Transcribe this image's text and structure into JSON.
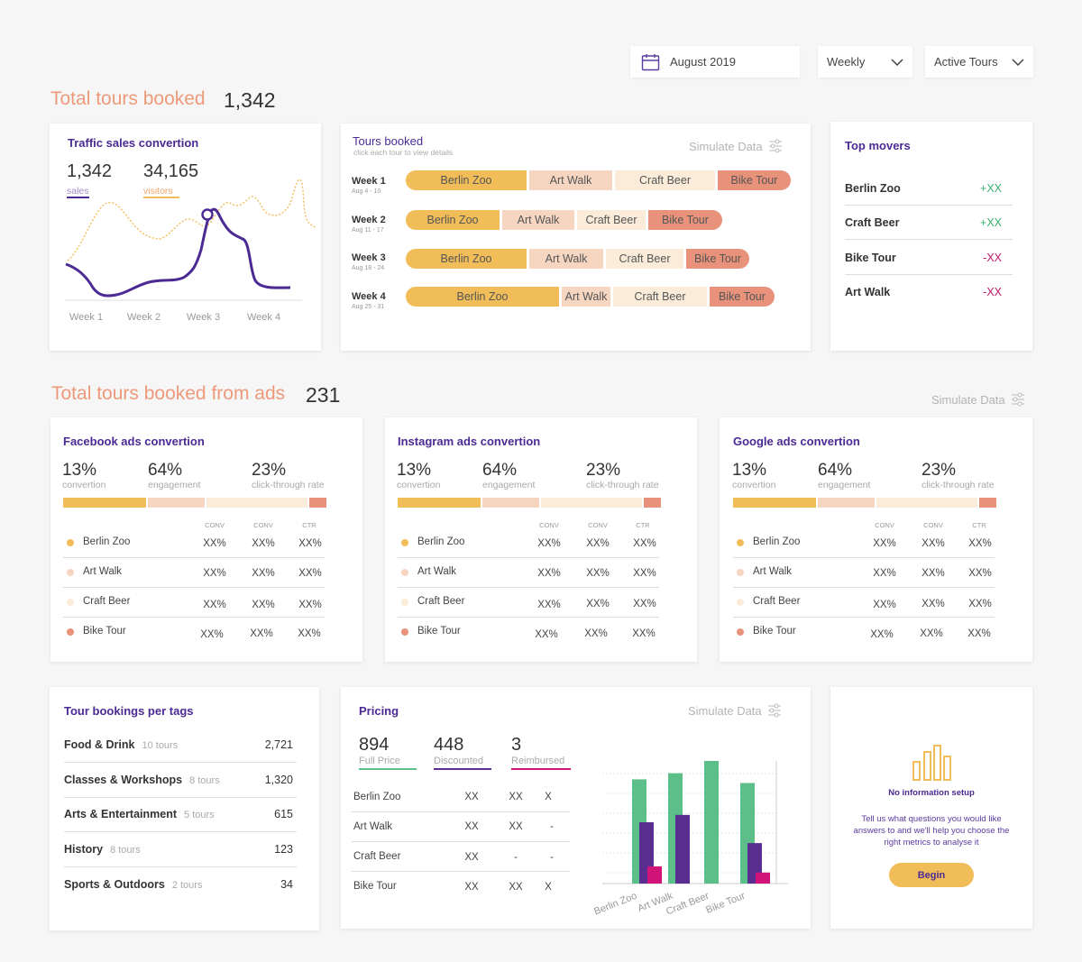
{
  "colors": {
    "accent": "#4b2a94",
    "orange": "#ee9a7a",
    "berlin_zoo": "#f1bd59",
    "art_walk": "#f6d6c1",
    "craft_beer": "#faecd9",
    "bike_tour": "#e8927b",
    "positive": "#3cb371",
    "negative": "#c0186f",
    "bar_green": "#5cbf8a",
    "bar_purple": "#5a2d91",
    "bar_pink": "#d0147a"
  },
  "controls": {
    "date": "August 2019",
    "period": "Weekly",
    "filter": "Active Tours"
  },
  "section1": {
    "title": "Total tours booked",
    "value": "1,342"
  },
  "traffic": {
    "title": "Traffic sales convertion",
    "sales_value": "1,342",
    "sales_label": "sales",
    "visitors_value": "34,165",
    "visitors_label": "visitors",
    "weeks": [
      "Week 1",
      "Week 2",
      "Week 3",
      "Week 4"
    ]
  },
  "tours": {
    "title": "Tours booked",
    "subtitle": "click each tour to view details",
    "simulate": "Simulate Data",
    "weeks": [
      {
        "label": "Week 1",
        "dates": "Aug 4 - 10",
        "segments": [
          "Berlin Zoo",
          "Art Walk",
          "Craft Beer",
          "Bike Tour"
        ]
      },
      {
        "label": "Week 2",
        "dates": "Aug 11 - 17",
        "segments": [
          "Berlin Zoo",
          "Art Walk",
          "Craft Beer",
          "Bike Tour"
        ]
      },
      {
        "label": "Week 3",
        "dates": "Aug 18 - 24",
        "segments": [
          "Berlin Zoo",
          "Art Walk",
          "Craft Beer",
          "Bike Tour"
        ]
      },
      {
        "label": "Week 4",
        "dates": "Aug 25 - 31",
        "segments": [
          "Berlin Zoo",
          "Art Walk",
          "Craft Beer",
          "Bike Tour"
        ]
      }
    ]
  },
  "movers": {
    "title": "Top movers",
    "items": [
      {
        "name": "Berlin Zoo",
        "change": "+XX"
      },
      {
        "name": "Craft Beer",
        "change": "+XX"
      },
      {
        "name": "Bike Tour",
        "change": "-XX"
      },
      {
        "name": "Art Walk",
        "change": "-XX"
      }
    ]
  },
  "section2": {
    "title": "Total tours booked from ads",
    "value": "231",
    "simulate": "Simulate Data"
  },
  "ads": [
    {
      "title": "Facebook ads convertion",
      "conv": "13%",
      "conv_label": "convertion",
      "eng": "64%",
      "eng_label": "engagement",
      "ctr": "23%",
      "ctr_label": "click-through rate",
      "cols": [
        "CONV",
        "CONV",
        "CTR"
      ],
      "rows": [
        {
          "name": "Berlin Zoo",
          "v": [
            "XX%",
            "XX%",
            "XX%"
          ]
        },
        {
          "name": "Art Walk",
          "v": [
            "XX%",
            "XX%",
            "XX%"
          ]
        },
        {
          "name": "Craft Beer",
          "v": [
            "XX%",
            "XX%",
            "XX%"
          ]
        },
        {
          "name": "Bike Tour",
          "v": [
            "XX%",
            "XX%",
            "XX%"
          ]
        }
      ]
    },
    {
      "title": "Instagram ads convertion",
      "conv": "13%",
      "conv_label": "convertion",
      "eng": "64%",
      "eng_label": "engagement",
      "ctr": "23%",
      "ctr_label": "click-through rate",
      "cols": [
        "CONV",
        "CONV",
        "CTR"
      ],
      "rows": [
        {
          "name": "Berlin Zoo",
          "v": [
            "XX%",
            "XX%",
            "XX%"
          ]
        },
        {
          "name": "Art Walk",
          "v": [
            "XX%",
            "XX%",
            "XX%"
          ]
        },
        {
          "name": "Craft Beer",
          "v": [
            "XX%",
            "XX%",
            "XX%"
          ]
        },
        {
          "name": "Bike Tour",
          "v": [
            "XX%",
            "XX%",
            "XX%"
          ]
        }
      ]
    },
    {
      "title": "Google ads convertion",
      "conv": "13%",
      "conv_label": "convertion",
      "eng": "64%",
      "eng_label": "engagement",
      "ctr": "23%",
      "ctr_label": "click-through rate",
      "cols": [
        "CONV",
        "CONV",
        "CTR"
      ],
      "rows": [
        {
          "name": "Berlin Zoo",
          "v": [
            "XX%",
            "XX%",
            "XX%"
          ]
        },
        {
          "name": "Art Walk",
          "v": [
            "XX%",
            "XX%",
            "XX%"
          ]
        },
        {
          "name": "Craft Beer",
          "v": [
            "XX%",
            "XX%",
            "XX%"
          ]
        },
        {
          "name": "Bike Tour",
          "v": [
            "XX%",
            "XX%",
            "XX%"
          ]
        }
      ]
    }
  ],
  "tags": {
    "title": "Tour bookings per tags",
    "items": [
      {
        "name": "Food & Drink",
        "count": "10 tours",
        "value": "2,721"
      },
      {
        "name": "Classes & Workshops",
        "count": "8 tours",
        "value": "1,320"
      },
      {
        "name": "Arts & Entertainment",
        "count": "5 tours",
        "value": "615"
      },
      {
        "name": "History",
        "count": "8 tours",
        "value": "123"
      },
      {
        "name": "Sports & Outdoors",
        "count": "2 tours",
        "value": "34"
      }
    ]
  },
  "pricing": {
    "title": "Pricing",
    "simulate": "Simulate Data",
    "full": "894",
    "full_label": "Full Price",
    "disc": "448",
    "disc_label": "Discounted",
    "reimb": "3",
    "reimb_label": "Reimbursed",
    "rows": [
      {
        "name": "Berlin Zoo",
        "v": [
          "XX",
          "XX",
          "X"
        ]
      },
      {
        "name": "Art Walk",
        "v": [
          "XX",
          "XX",
          "-"
        ]
      },
      {
        "name": "Craft Beer",
        "v": [
          "XX",
          "-",
          "-"
        ]
      },
      {
        "name": "Bike Tour",
        "v": [
          "XX",
          "XX",
          "X"
        ]
      }
    ]
  },
  "chart_data": {
    "type": "bar",
    "categories": [
      "Berlin Zoo",
      "Art Walk",
      "Craft Beer",
      "Bike Tour"
    ],
    "series": [
      {
        "name": "Full Price",
        "values": [
          85,
          90,
          100,
          82
        ]
      },
      {
        "name": "Discounted",
        "values": [
          50,
          56,
          0,
          33
        ]
      },
      {
        "name": "Reimbursed",
        "values": [
          14,
          0,
          0,
          9
        ]
      }
    ],
    "ylim": [
      0,
      100
    ],
    "title": "",
    "xlabel": "",
    "ylabel": ""
  },
  "info": {
    "title": "No information setup",
    "text": "Tell us what questions you would like answers to and we'll help you choose the right metrics to analyse it",
    "button": "Begin"
  }
}
